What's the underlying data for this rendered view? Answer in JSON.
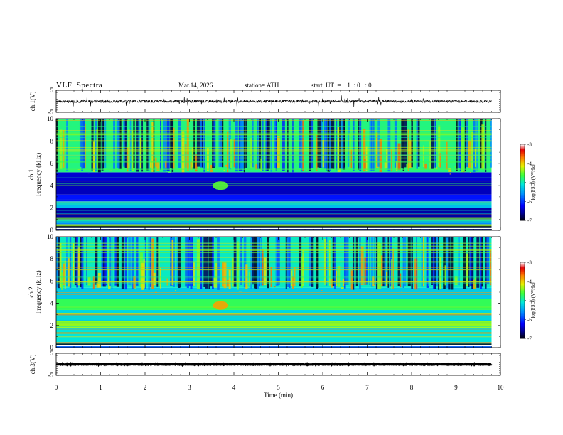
{
  "header": {
    "title": "VLF  Spectra",
    "date": "Mar.14, 2026",
    "station": "station= ATH",
    "start": "start  UT  =    1  : 0   : 0"
  },
  "chart_data": {
    "type": "spectrogram",
    "xlabel": "Time  (min)",
    "xlim": [
      0,
      10
    ],
    "xticks": [
      "0",
      "1",
      "2",
      "3",
      "4",
      "5",
      "6",
      "7",
      "8",
      "9",
      "10"
    ],
    "data_end_min": 9.8,
    "panels": [
      {
        "id": "ch1-waveform",
        "type": "line",
        "ylabel": "ch.1(V)",
        "ylim": [
          -5,
          5
        ],
        "yticks": [
          "5",
          "-5"
        ],
        "baseline": 0.0,
        "spread": 0.6
      },
      {
        "id": "ch1-spectrogram",
        "type": "heatmap",
        "ylabel": "ch.1\nFrequency  (kHz)",
        "ylabel_lines": [
          "ch.1",
          "Frequency  (kHz)"
        ],
        "ylim": [
          0,
          10
        ],
        "yticks": [
          "0",
          "2",
          "4",
          "6",
          "8",
          "10"
        ],
        "colorbar": {
          "label": "log(PSD) (V²/Hz)",
          "range": [
            -7,
            -3
          ],
          "ticks": [
            "-3",
            "-4",
            "-5",
            "-6",
            "-7"
          ]
        },
        "bands_khz": [
          {
            "from": 0.0,
            "to": 0.5,
            "level": 0.06
          },
          {
            "from": 0.5,
            "to": 1.0,
            "level": 0.35
          },
          {
            "from": 1.0,
            "to": 2.0,
            "level": 0.12
          },
          {
            "from": 2.0,
            "to": 2.6,
            "level": 0.42
          },
          {
            "from": 2.6,
            "to": 3.2,
            "level": 0.22
          },
          {
            "from": 3.2,
            "to": 4.4,
            "level": 0.14
          },
          {
            "from": 4.4,
            "to": 5.2,
            "level": 0.16
          },
          {
            "from": 5.2,
            "to": 10.0,
            "level": 0.55
          }
        ],
        "event": {
          "t_min": 3.7,
          "f_khz": 4.0,
          "level": 0.62
        }
      },
      {
        "id": "ch2-spectrogram",
        "type": "heatmap",
        "ylabel": "ch.2\nFrequency  (kHz)",
        "ylabel_lines": [
          "ch.2",
          "Frequency  (kHz)"
        ],
        "ylim": [
          0,
          10
        ],
        "yticks": [
          "0",
          "2",
          "4",
          "6",
          "8",
          "10"
        ],
        "colorbar": {
          "label": "log(PSD) (V²/Hz)",
          "range": [
            -7,
            -3
          ],
          "ticks": [
            "-3",
            "-4",
            "-5",
            "-6",
            "-7"
          ]
        },
        "bands_khz": [
          {
            "from": 0.0,
            "to": 0.5,
            "level": 0.3
          },
          {
            "from": 0.5,
            "to": 1.8,
            "level": 0.48
          },
          {
            "from": 1.8,
            "to": 2.4,
            "level": 0.66
          },
          {
            "from": 2.4,
            "to": 3.4,
            "level": 0.46
          },
          {
            "from": 3.4,
            "to": 4.4,
            "level": 0.58
          },
          {
            "from": 4.4,
            "to": 5.4,
            "level": 0.44
          },
          {
            "from": 5.4,
            "to": 10.0,
            "level": 0.5
          }
        ],
        "event": {
          "t_min": 3.7,
          "f_khz": 3.8,
          "level": 0.8
        }
      },
      {
        "id": "ch3-waveform",
        "type": "line",
        "ylabel": "ch.3(V)",
        "ylim": [
          -5,
          5
        ],
        "yticks": [
          "5",
          "-5"
        ],
        "baseline": 0.0,
        "spread": 0.15
      }
    ]
  }
}
